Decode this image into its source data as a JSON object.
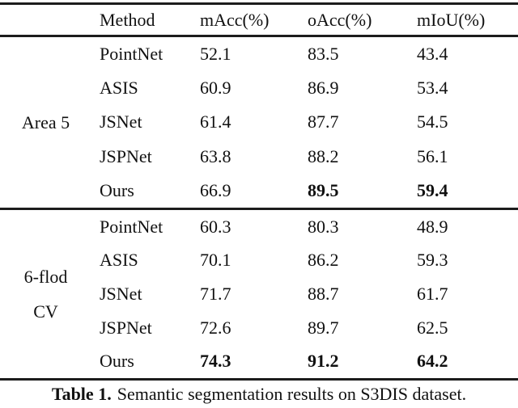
{
  "table": {
    "header": {
      "method": "Method",
      "macc": "mAcc(%)",
      "oacc": "oAcc(%)",
      "miou": "mIoU(%)"
    },
    "groups": [
      {
        "label": "Area 5",
        "label_lines": [
          "Area 5"
        ],
        "rows": [
          {
            "method": "PointNet",
            "macc": "52.1",
            "oacc": "83.5",
            "miou": "43.4"
          },
          {
            "method": "ASIS",
            "macc": "60.9",
            "oacc": "86.9",
            "miou": "53.4"
          },
          {
            "method": "JSNet",
            "macc": "61.4",
            "oacc": "87.7",
            "miou": "54.5"
          },
          {
            "method": "JSPNet",
            "macc": "63.8",
            "oacc": "88.2",
            "miou": "56.1"
          },
          {
            "method": "Ours",
            "macc": "66.9",
            "oacc": "89.5",
            "miou": "59.4"
          }
        ]
      },
      {
        "label": "6-flod CV",
        "label_lines": [
          "6-flod",
          "CV"
        ],
        "rows": [
          {
            "method": "PointNet",
            "macc": "60.3",
            "oacc": "80.3",
            "miou": "48.9"
          },
          {
            "method": "ASIS",
            "macc": "70.1",
            "oacc": "86.2",
            "miou": "59.3"
          },
          {
            "method": "JSNet",
            "macc": "71.7",
            "oacc": "88.7",
            "miou": "61.7"
          },
          {
            "method": "JSPNet",
            "macc": "72.6",
            "oacc": "89.7",
            "miou": "62.5"
          },
          {
            "method": "Ours",
            "macc": "74.3",
            "oacc": "91.2",
            "miou": "64.2"
          }
        ]
      }
    ]
  },
  "caption": {
    "label": "Table 1.",
    "text": "Semantic segmentation results on S3DIS dataset."
  }
}
